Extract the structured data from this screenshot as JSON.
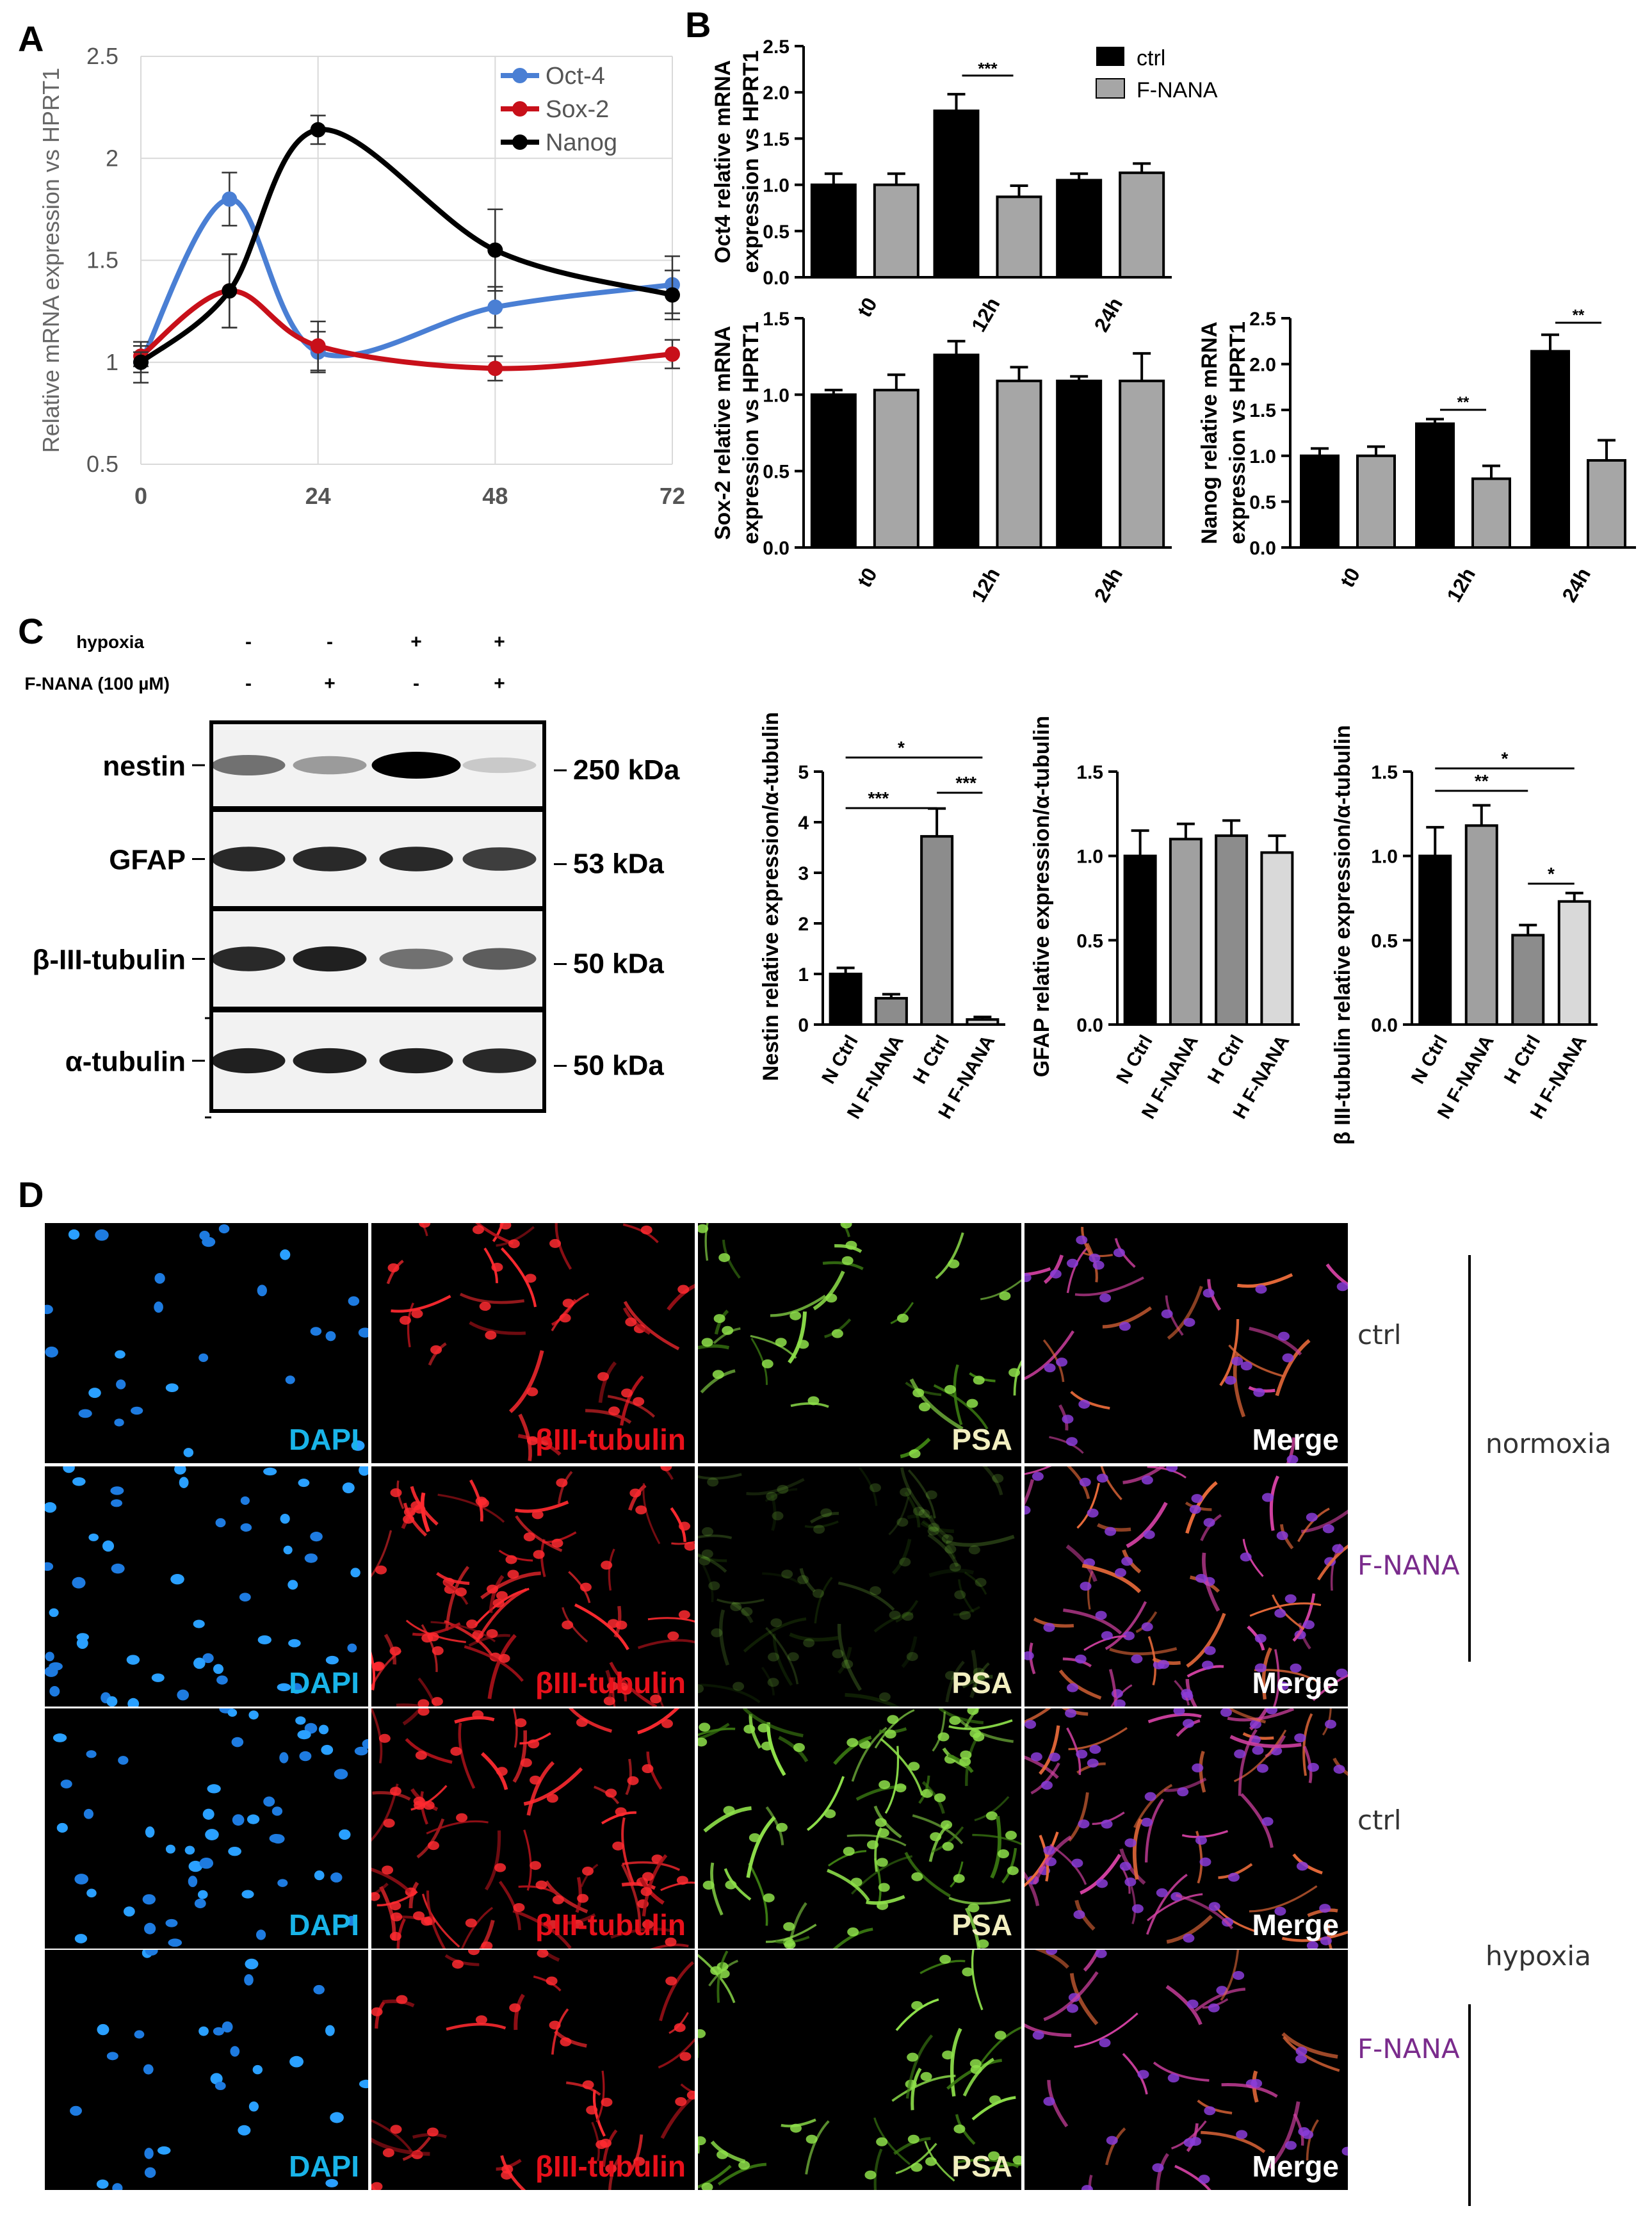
{
  "panel_letters": {
    "a": "A",
    "b": "B",
    "c": "C",
    "d": "D"
  },
  "colors": {
    "oct4": "#4a7fd4",
    "sox2": "#c8101a",
    "nanog": "#000000",
    "ctrl_bar": "#000000",
    "fnana_bar": "#a6a6a6",
    "dapi": "#19b4e8",
    "tubulin": "#e8101a",
    "psa": "#f2efc0",
    "merge": "#ffffff",
    "fnana_text": "#7a2b8c"
  },
  "chart_data": [
    {
      "id": "A",
      "type": "line",
      "x": [
        0,
        12,
        24,
        48,
        72
      ],
      "xticks": [
        "0",
        "24",
        "48",
        "72"
      ],
      "yticks": [
        "0.5",
        "1",
        "1.5",
        "2",
        "2.5"
      ],
      "ylim": [
        0.5,
        2.5
      ],
      "ylabel": "Relative mRNA expression vs HPRT1",
      "grid": true,
      "legend_position": "top-right",
      "series": [
        {
          "name": "Oct-4",
          "color": "#4a7fd4",
          "values": [
            1.0,
            1.8,
            1.05,
            1.27,
            1.38
          ],
          "err": [
            0.1,
            0.13,
            0.1,
            0.1,
            0.14
          ]
        },
        {
          "name": "Sox-2",
          "color": "#c8101a",
          "values": [
            1.03,
            1.35,
            1.08,
            0.97,
            1.04
          ],
          "err": [
            0.05,
            0.18,
            0.12,
            0.06,
            0.07
          ]
        },
        {
          "name": "Nanog",
          "color": "#000000",
          "values": [
            1.0,
            1.35,
            2.14,
            1.55,
            1.33
          ],
          "err": [
            0.05,
            0.18,
            0.07,
            0.2,
            0.12
          ]
        }
      ]
    },
    {
      "id": "B1",
      "type": "bar",
      "categories": [
        "t0",
        "12h",
        "24h"
      ],
      "ylabel_lines": [
        "Oct4 relative mRNA",
        "expression vs HPRT1"
      ],
      "ylim": [
        0,
        2.5
      ],
      "yticks": [
        "0.0",
        "0.5",
        "1.0",
        "1.5",
        "2.0",
        "2.5"
      ],
      "series": [
        {
          "name": "ctrl",
          "values": [
            1.0,
            1.8,
            1.05
          ],
          "err": [
            0.12,
            0.18,
            0.07
          ]
        },
        {
          "name": "F-NANA",
          "values": [
            1.0,
            0.87,
            1.13
          ],
          "err": [
            0.12,
            0.12,
            0.1
          ]
        }
      ],
      "significance": [
        {
          "category": "12h",
          "label": "***"
        }
      ],
      "legend_position": "right"
    },
    {
      "id": "B2",
      "type": "bar",
      "categories": [
        "t0",
        "12h",
        "24h"
      ],
      "ylabel_lines": [
        "Sox-2 relative mRNA",
        "expression vs HPRT1"
      ],
      "ylim": [
        0,
        1.5
      ],
      "yticks": [
        "0.0",
        "0.5",
        "1.0",
        "1.5"
      ],
      "series": [
        {
          "name": "ctrl",
          "values": [
            1.0,
            1.26,
            1.09
          ],
          "err": [
            0.03,
            0.09,
            0.03
          ]
        },
        {
          "name": "F-NANA",
          "values": [
            1.03,
            1.09,
            1.09
          ],
          "err": [
            0.1,
            0.09,
            0.18
          ]
        }
      ]
    },
    {
      "id": "B3",
      "type": "bar",
      "categories": [
        "t0",
        "12h",
        "24h"
      ],
      "ylabel_lines": [
        "Nanog relative mRNA",
        "expression vs HPRT1"
      ],
      "ylim": [
        0,
        2.5
      ],
      "yticks": [
        "0.0",
        "0.5",
        "1.0",
        "1.5",
        "2.0",
        "2.5"
      ],
      "series": [
        {
          "name": "ctrl",
          "values": [
            1.0,
            1.35,
            2.14
          ],
          "err": [
            0.08,
            0.05,
            0.18
          ]
        },
        {
          "name": "F-NANA",
          "values": [
            1.0,
            0.75,
            0.95
          ],
          "err": [
            0.1,
            0.14,
            0.22
          ]
        }
      ],
      "significance": [
        {
          "category": "12h",
          "label": "**"
        },
        {
          "category": "24h",
          "label": "**"
        }
      ]
    },
    {
      "id": "C1",
      "type": "bar",
      "categories": [
        "N Ctrl",
        "N F-NANA",
        "H Ctrl",
        "H F-NANA"
      ],
      "colors": [
        "#000000",
        "#8c8c8c",
        "#8c8c8c",
        "#d0d0d0"
      ],
      "values": [
        1.0,
        0.52,
        3.72,
        0.1
      ],
      "err": [
        0.12,
        0.08,
        0.55,
        0.05
      ],
      "ylabel": "Nestin relative expression/α-tubulin",
      "ylim": [
        0,
        5
      ],
      "yticks": [
        "0",
        "1",
        "2",
        "3",
        "4",
        "5"
      ],
      "significance": [
        {
          "from": 0,
          "to": 2,
          "label": "***",
          "level": 1
        },
        {
          "from": 2,
          "to": 3,
          "label": "***",
          "level": 1
        },
        {
          "from": 0,
          "to": 3,
          "label": "*",
          "level": 2
        }
      ]
    },
    {
      "id": "C2",
      "type": "bar",
      "categories": [
        "N Ctrl",
        "N F-NANA",
        "H Ctrl",
        "H F-NANA"
      ],
      "colors": [
        "#000000",
        "#a0a0a0",
        "#8c8c8c",
        "#d9d9d9"
      ],
      "values": [
        1.0,
        1.1,
        1.12,
        1.02
      ],
      "err": [
        0.15,
        0.09,
        0.09,
        0.1
      ],
      "ylabel": "GFAP relative expression/α-tubulin",
      "ylim": [
        0,
        1.5
      ],
      "yticks": [
        "0.0",
        "0.5",
        "1.0",
        "1.5"
      ]
    },
    {
      "id": "C3",
      "type": "bar",
      "categories": [
        "N Ctrl",
        "N F-NANA",
        "H Ctrl",
        "H F-NANA"
      ],
      "colors": [
        "#000000",
        "#a0a0a0",
        "#8c8c8c",
        "#d9d9d9"
      ],
      "values": [
        1.0,
        1.18,
        0.53,
        0.73
      ],
      "err": [
        0.17,
        0.12,
        0.06,
        0.05
      ],
      "ylabel": "β III-tubulin relative expression/α-tubulin",
      "ylim": [
        0,
        1.5
      ],
      "yticks": [
        "0.0",
        "0.5",
        "1.0",
        "1.5"
      ],
      "significance": [
        {
          "from": 0,
          "to": 2,
          "label": "**",
          "level": 1
        },
        {
          "from": 0,
          "to": 3,
          "label": "*",
          "level": 2
        },
        {
          "from": 2,
          "to": 3,
          "label": "*",
          "level": 0
        }
      ]
    }
  ],
  "blot": {
    "conditions": [
      {
        "label": "hypoxia",
        "values": [
          "-",
          "-",
          "+",
          "+"
        ]
      },
      {
        "label": "F-NANA (100 µM)",
        "values": [
          "-",
          "+",
          "-",
          "+"
        ]
      }
    ],
    "rows": [
      {
        "protein": "nestin",
        "kda": "250 kDa",
        "intensity": [
          0.45,
          0.25,
          1.0,
          0.02
        ]
      },
      {
        "protein": "GFAP",
        "kda": "53 kDa",
        "intensity": [
          0.8,
          0.8,
          0.8,
          0.7
        ]
      },
      {
        "protein": "β-III-tubulin",
        "kda": "50 kDa",
        "intensity": [
          0.8,
          0.85,
          0.45,
          0.55
        ]
      },
      {
        "protein": "α-tubulin",
        "kda": "50 kDa",
        "intensity": [
          0.85,
          0.85,
          0.85,
          0.8
        ]
      }
    ]
  },
  "micrographs": {
    "channels": [
      "DAPI",
      "βIII-tubulin",
      "PSA",
      "Merge"
    ],
    "rows": [
      {
        "treatment": "ctrl",
        "density": 0.25
      },
      {
        "treatment": "F-NANA",
        "density": 0.7
      },
      {
        "treatment": "ctrl",
        "density": 0.75
      },
      {
        "treatment": "F-NANA",
        "density": 0.3
      }
    ],
    "groups": [
      "normoxia",
      "hypoxia"
    ]
  }
}
